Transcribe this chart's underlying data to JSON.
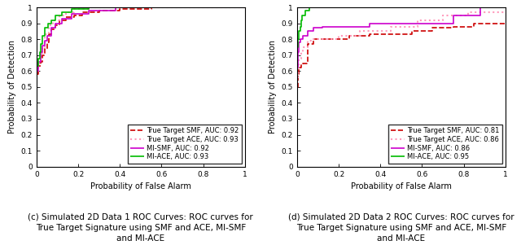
{
  "left_plot": {
    "xlabel": "Probability of False Alarm",
    "ylabel": "Probability of Detection",
    "xlim": [
      0,
      1
    ],
    "ylim": [
      0,
      1
    ],
    "caption_line1": "(c) Simulated 2D Data 1 ROC Curves: ROC curves for",
    "caption_line2": "True Target Signature using SMF and ACE, MI-SMF",
    "caption_line3": "and MI-ACE",
    "curves": {
      "smf": {
        "label": "True Target SMF, AUC: 0.92",
        "color": "#CC0000",
        "linestyle": "--",
        "linewidth": 1.2,
        "x": [
          0,
          0.01,
          0.01,
          0.02,
          0.02,
          0.03,
          0.03,
          0.04,
          0.04,
          0.05,
          0.05,
          0.06,
          0.06,
          0.07,
          0.07,
          0.09,
          0.09,
          0.11,
          0.11,
          0.14,
          0.14,
          0.18,
          0.18,
          0.22,
          0.22,
          0.3,
          0.3,
          0.4,
          0.4,
          0.55,
          0.55,
          1.0
        ],
        "y": [
          0.58,
          0.58,
          0.63,
          0.63,
          0.66,
          0.66,
          0.7,
          0.7,
          0.74,
          0.74,
          0.78,
          0.78,
          0.83,
          0.83,
          0.86,
          0.86,
          0.89,
          0.89,
          0.92,
          0.92,
          0.94,
          0.94,
          0.95,
          0.95,
          0.97,
          0.97,
          0.98,
          0.98,
          0.99,
          0.99,
          1.0,
          1.0
        ]
      },
      "ace": {
        "label": "True Target ACE, AUC: 0.93",
        "color": "#FF99BB",
        "linestyle": ":",
        "linewidth": 1.5,
        "x": [
          0,
          0.01,
          0.01,
          0.02,
          0.02,
          0.03,
          0.03,
          0.04,
          0.04,
          0.06,
          0.06,
          0.08,
          0.08,
          0.11,
          0.11,
          0.14,
          0.14,
          0.18,
          0.18,
          0.25,
          0.25,
          0.38,
          0.38,
          1.0
        ],
        "y": [
          0.6,
          0.6,
          0.65,
          0.65,
          0.7,
          0.7,
          0.75,
          0.75,
          0.83,
          0.83,
          0.89,
          0.89,
          0.92,
          0.92,
          0.95,
          0.95,
          0.97,
          0.97,
          0.99,
          0.99,
          1.0,
          1.0,
          1.0,
          1.0
        ]
      },
      "mi_smf": {
        "label": "MI-SMF, AUC: 0.92",
        "color": "#CC00CC",
        "linestyle": "-",
        "linewidth": 1.2,
        "x": [
          0,
          0.01,
          0.01,
          0.02,
          0.02,
          0.03,
          0.03,
          0.04,
          0.04,
          0.05,
          0.05,
          0.07,
          0.07,
          0.09,
          0.09,
          0.12,
          0.12,
          0.17,
          0.17,
          0.25,
          0.25,
          0.38,
          0.38,
          1.0
        ],
        "y": [
          0.6,
          0.6,
          0.66,
          0.66,
          0.72,
          0.72,
          0.76,
          0.76,
          0.79,
          0.79,
          0.82,
          0.82,
          0.87,
          0.87,
          0.9,
          0.9,
          0.93,
          0.93,
          0.96,
          0.96,
          0.98,
          0.98,
          1.0,
          1.0
        ]
      },
      "mi_ace": {
        "label": "MI-ACE, AUC: 0.93",
        "color": "#00BB00",
        "linestyle": "-",
        "linewidth": 1.2,
        "x": [
          0,
          0.01,
          0.01,
          0.015,
          0.015,
          0.02,
          0.02,
          0.03,
          0.03,
          0.04,
          0.04,
          0.055,
          0.055,
          0.07,
          0.07,
          0.09,
          0.09,
          0.12,
          0.12,
          0.17,
          0.17,
          0.25,
          0.25,
          1.0
        ],
        "y": [
          0.63,
          0.63,
          0.68,
          0.68,
          0.72,
          0.72,
          0.77,
          0.77,
          0.82,
          0.82,
          0.87,
          0.87,
          0.9,
          0.9,
          0.92,
          0.92,
          0.95,
          0.95,
          0.97,
          0.97,
          0.99,
          0.99,
          1.0,
          1.0
        ]
      }
    }
  },
  "right_plot": {
    "xlabel": "Probability of False Alarm",
    "ylabel": "Probability of Detection",
    "xlim": [
      0,
      1
    ],
    "ylim": [
      0,
      1
    ],
    "caption_line1": "(d) Simulated 2D Data 2 ROC Curves: ROC curves for",
    "caption_line2": "True Target Signature using SMF and ACE, MI-SMF",
    "caption_line3": "and MI-ACE",
    "curves": {
      "smf": {
        "label": "True Target SMF, AUC: 0.81",
        "color": "#CC0000",
        "linestyle": "--",
        "linewidth": 1.2,
        "x": [
          0,
          0.005,
          0.005,
          0.01,
          0.01,
          0.02,
          0.02,
          0.03,
          0.03,
          0.05,
          0.05,
          0.08,
          0.08,
          0.12,
          0.12,
          0.18,
          0.18,
          0.25,
          0.25,
          0.35,
          0.35,
          0.45,
          0.45,
          0.55,
          0.55,
          0.65,
          0.65,
          0.75,
          0.75,
          0.85,
          0.85,
          1.0
        ],
        "y": [
          0.5,
          0.5,
          0.58,
          0.58,
          0.62,
          0.62,
          0.64,
          0.64,
          0.65,
          0.65,
          0.77,
          0.77,
          0.8,
          0.8,
          0.8,
          0.8,
          0.8,
          0.8,
          0.82,
          0.82,
          0.83,
          0.83,
          0.83,
          0.83,
          0.85,
          0.85,
          0.87,
          0.87,
          0.88,
          0.88,
          0.9,
          0.9
        ]
      },
      "ace": {
        "label": "True Target ACE, AUC: 0.86",
        "color": "#FF99BB",
        "linestyle": ":",
        "linewidth": 1.5,
        "x": [
          0,
          0.005,
          0.005,
          0.01,
          0.01,
          0.02,
          0.02,
          0.03,
          0.03,
          0.05,
          0.05,
          0.08,
          0.08,
          0.12,
          0.12,
          0.2,
          0.2,
          0.3,
          0.3,
          0.45,
          0.45,
          0.58,
          0.58,
          0.7,
          0.7,
          0.82,
          0.82,
          1.0
        ],
        "y": [
          0.56,
          0.56,
          0.62,
          0.62,
          0.68,
          0.68,
          0.72,
          0.72,
          0.75,
          0.75,
          0.79,
          0.79,
          0.8,
          0.8,
          0.8,
          0.8,
          0.82,
          0.82,
          0.85,
          0.85,
          0.88,
          0.88,
          0.92,
          0.92,
          0.95,
          0.95,
          0.97,
          0.97
        ]
      },
      "mi_smf": {
        "label": "MI-SMF, AUC: 0.86",
        "color": "#CC00CC",
        "linestyle": "-",
        "linewidth": 1.2,
        "x": [
          0,
          0.005,
          0.005,
          0.01,
          0.01,
          0.015,
          0.015,
          0.02,
          0.02,
          0.03,
          0.03,
          0.05,
          0.05,
          0.08,
          0.08,
          0.12,
          0.12,
          0.2,
          0.2,
          0.35,
          0.35,
          0.55,
          0.55,
          0.75,
          0.75,
          0.88,
          0.88,
          1.0
        ],
        "y": [
          0.62,
          0.62,
          0.72,
          0.72,
          0.78,
          0.78,
          0.8,
          0.8,
          0.8,
          0.8,
          0.82,
          0.82,
          0.85,
          0.85,
          0.87,
          0.87,
          0.88,
          0.88,
          0.88,
          0.88,
          0.9,
          0.9,
          0.9,
          0.9,
          0.95,
          0.95,
          1.0,
          1.0
        ]
      },
      "mi_ace": {
        "label": "MI-ACE, AUC: 0.95",
        "color": "#00BB00",
        "linestyle": "-",
        "linewidth": 1.2,
        "x": [
          0,
          0.005,
          0.005,
          0.01,
          0.01,
          0.015,
          0.015,
          0.02,
          0.02,
          0.025,
          0.025,
          0.04,
          0.04,
          0.06,
          0.06,
          0.09,
          0.09,
          0.14,
          0.14,
          0.22,
          0.22,
          1.0
        ],
        "y": [
          0.75,
          0.75,
          0.8,
          0.8,
          0.85,
          0.85,
          0.88,
          0.88,
          0.92,
          0.92,
          0.95,
          0.95,
          0.98,
          0.98,
          1.0,
          1.0,
          1.0,
          1.0,
          1.0,
          1.0,
          1.0,
          1.0
        ]
      }
    }
  },
  "fig_width": 6.4,
  "fig_height": 3.01,
  "caption_fontsize": 7.5,
  "axis_label_fontsize": 7,
  "tick_fontsize": 6.5,
  "legend_fontsize": 6.0,
  "xticks": [
    0,
    0.2,
    0.4,
    0.6,
    0.8,
    1.0
  ],
  "yticks": [
    0,
    0.1,
    0.2,
    0.3,
    0.4,
    0.5,
    0.6,
    0.7,
    0.8,
    0.9,
    1.0
  ]
}
